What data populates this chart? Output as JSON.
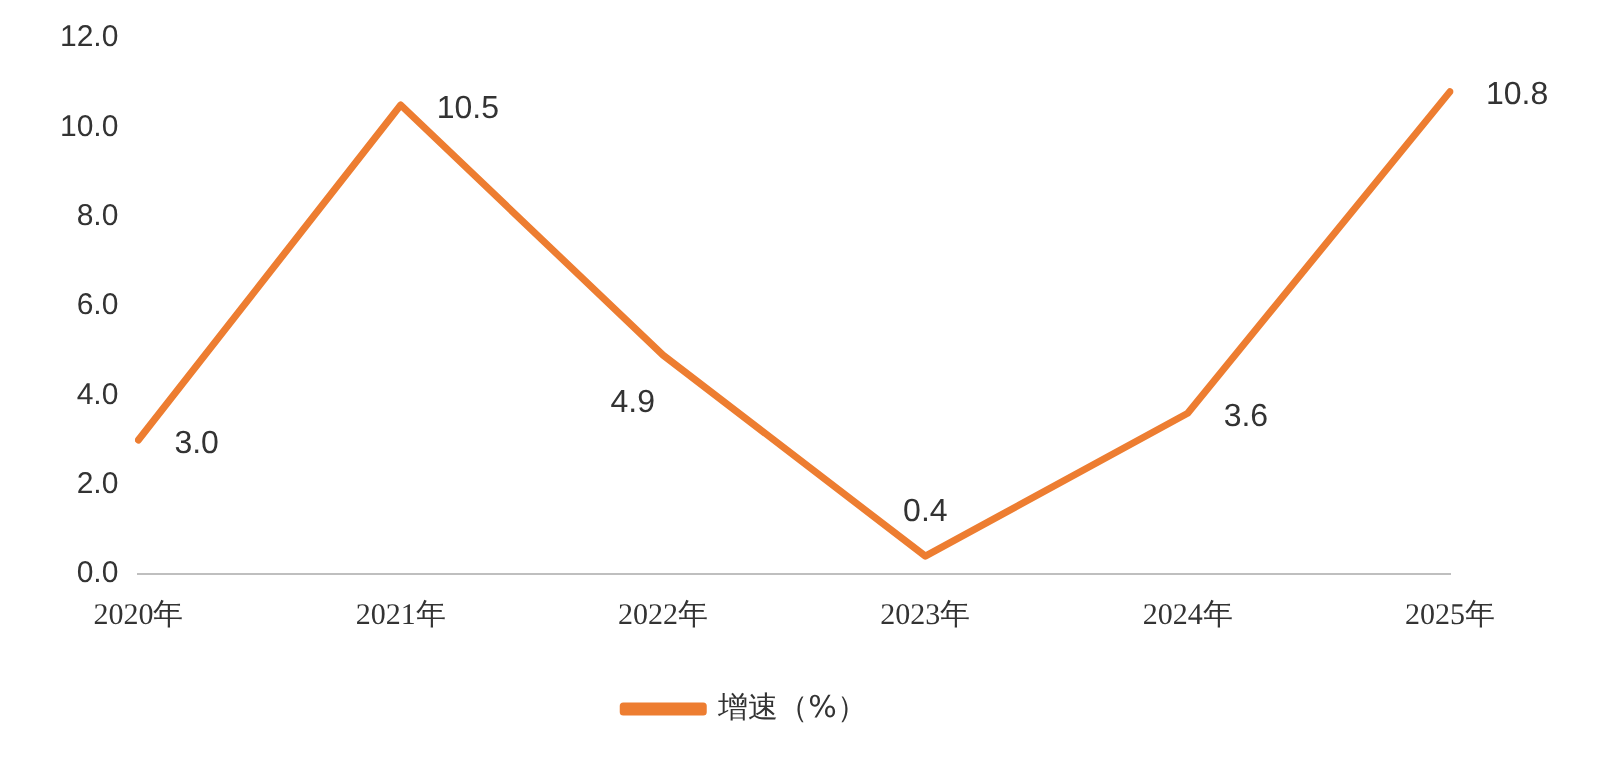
{
  "chart_data": {
    "type": "line",
    "categories": [
      "2020年",
      "2021年",
      "2022年",
      "2023年",
      "2024年",
      "2025年"
    ],
    "series": [
      {
        "name": "增速（%）",
        "color": "#ed7d31",
        "values": [
          3.0,
          10.5,
          4.9,
          0.4,
          3.6,
          10.8
        ],
        "value_labels": [
          "3.0",
          "10.5",
          "4.9",
          "0.4",
          "3.6",
          "10.8"
        ]
      }
    ],
    "ylim": [
      0,
      12
    ],
    "yticks": [
      {
        "value": 0,
        "label": "0.0"
      },
      {
        "value": 2,
        "label": "2.0"
      },
      {
        "value": 4,
        "label": "4.0"
      },
      {
        "value": 6,
        "label": "6.0"
      },
      {
        "value": 8,
        "label": "8.0"
      },
      {
        "value": 10,
        "label": "10.0"
      },
      {
        "value": 12,
        "label": "12.0"
      }
    ],
    "grid": false,
    "legend": "bottom",
    "marker": "none",
    "line_style": "solid"
  }
}
